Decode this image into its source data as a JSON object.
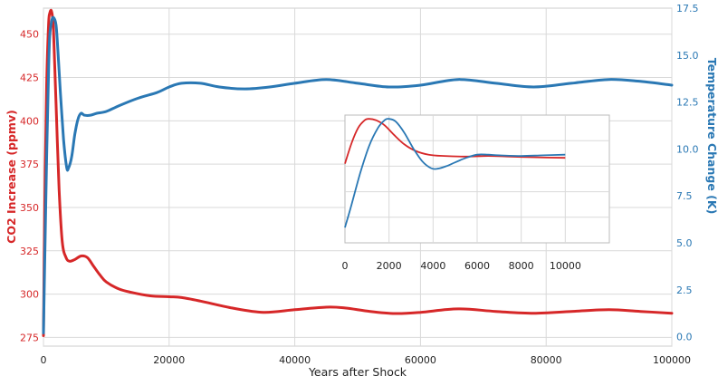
{
  "chart_data": [
    {
      "type": "line",
      "title": "",
      "xlabel": "Years after Shock",
      "ylabel_left": "CO2 Increase (ppmv)",
      "ylabel_right": "Temperature Change (K)",
      "xlim": [
        0,
        100000
      ],
      "ylim_left": [
        270,
        465
      ],
      "ylim_right": [
        -0.5,
        17.5
      ],
      "x_ticks": [
        "0",
        "20000",
        "40000",
        "60000",
        "80000",
        "100000"
      ],
      "y_left_ticks": [
        "275",
        "300",
        "325",
        "350",
        "375",
        "400",
        "425",
        "450"
      ],
      "y_right_ticks": [
        "0.0",
        "2.5",
        "5.0",
        "7.5",
        "10.0",
        "12.5",
        "15.0",
        "17.5"
      ],
      "grid": true,
      "colors": {
        "co2": "#d62728",
        "temperature": "#2a78b4",
        "grid": "#d9d9d9"
      },
      "series": [
        {
          "name": "",
          "axis": "left",
          "color": "#d62728",
          "x": [
            0,
            200,
            500,
            800,
            1000,
            1300,
            1600,
            2000,
            2500,
            3000,
            3600,
            4200,
            5000,
            6000,
            7000,
            8000,
            9000,
            10000,
            12000,
            14000,
            17000,
            20000,
            22000,
            25000,
            30000,
            35000,
            40000,
            45000,
            48000,
            52000,
            56000,
            60000,
            66000,
            72000,
            78000,
            84000,
            90000,
            95000,
            100000
          ],
          "values": [
            276,
            350,
            420,
            455,
            462,
            463,
            452,
            410,
            360,
            330,
            321,
            319,
            320,
            322,
            321,
            316,
            311,
            307,
            303,
            301,
            299,
            298.5,
            298,
            296,
            292,
            289.5,
            291,
            292.5,
            292,
            290,
            288.8,
            289.5,
            291.5,
            290,
            289,
            290,
            291,
            290,
            289
          ]
        },
        {
          "name": "",
          "axis": "right",
          "color": "#2a78b4",
          "x": [
            0,
            200,
            500,
            800,
            1000,
            1300,
            1600,
            2000,
            2300,
            2700,
            3200,
            3700,
            4000,
            4500,
            5000,
            5500,
            6000,
            6500,
            7500,
            8500,
            10000,
            12000,
            15000,
            18000,
            20000,
            22000,
            25000,
            28000,
            32000,
            36000,
            40000,
            45000,
            50000,
            55000,
            60000,
            66000,
            72000,
            78000,
            84000,
            90000,
            95000,
            100000
          ],
          "values": [
            0.2,
            4,
            9.5,
            14,
            16,
            16.8,
            17,
            16.6,
            15.2,
            13,
            10.5,
            9,
            9,
            9.6,
            10.8,
            11.6,
            11.9,
            11.8,
            11.8,
            11.9,
            12,
            12.3,
            12.7,
            13.0,
            13.3,
            13.5,
            13.5,
            13.3,
            13.2,
            13.3,
            13.5,
            13.7,
            13.5,
            13.3,
            13.4,
            13.7,
            13.5,
            13.3,
            13.5,
            13.7,
            13.6,
            13.4
          ]
        }
      ]
    },
    {
      "type": "line",
      "title": "",
      "xlim": [
        0,
        12000
      ],
      "x_ticks": [
        "0",
        "2000",
        "4000",
        "6000",
        "8000",
        "10000"
      ],
      "grid": true,
      "series": [
        {
          "name": "",
          "color": "#d62728",
          "x": [
            0,
            300,
            600,
            900,
            1100,
            1400,
            1800,
            2200,
            2700,
            3200,
            3800,
            4500,
            5500,
            6500,
            7500,
            8500,
            10000
          ],
          "values": [
            0.62,
            0.78,
            0.9,
            0.96,
            0.97,
            0.96,
            0.92,
            0.85,
            0.77,
            0.72,
            0.69,
            0.68,
            0.675,
            0.68,
            0.675,
            0.67,
            0.665
          ]
        },
        {
          "name": "",
          "color": "#2a78b4",
          "x": [
            0,
            300,
            700,
            1100,
            1500,
            1800,
            2000,
            2300,
            2700,
            3100,
            3500,
            3900,
            4200,
            4600,
            5000,
            5500,
            6000,
            6500,
            7000,
            8000,
            9000,
            10000
          ],
          "values": [
            0.12,
            0.3,
            0.55,
            0.76,
            0.9,
            0.96,
            0.97,
            0.95,
            0.86,
            0.74,
            0.64,
            0.585,
            0.58,
            0.6,
            0.63,
            0.665,
            0.69,
            0.69,
            0.685,
            0.68,
            0.685,
            0.69
          ]
        }
      ]
    }
  ]
}
